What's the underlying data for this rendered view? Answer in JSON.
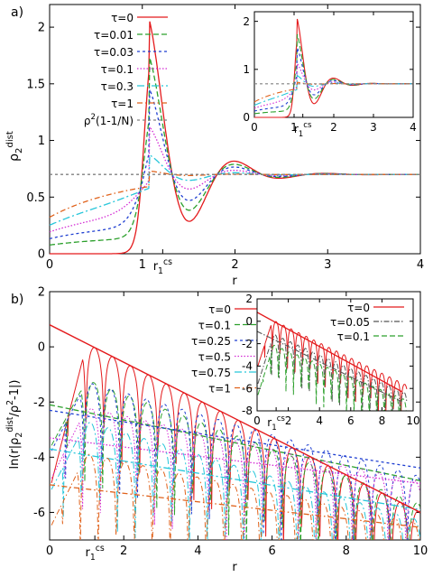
{
  "colors": {
    "tau0": "#e41a1c",
    "tau01": "#2ca02c",
    "tau003": "#1f3fd1",
    "tau_1": "#d42ad4",
    "tau_3": "#26c6da",
    "tau1": "#e0621b",
    "ideal": "#808080",
    "tau005": "#555555",
    "tau025": "#1f3fd1",
    "tau05": "#d42ad4",
    "tau075": "#26c6da"
  },
  "chart_data": [
    {
      "panel_label": "a)",
      "type": "line",
      "xlabel": "r",
      "ylabel": "ρ₂dist",
      "ylabel_main": "ρ",
      "ylabel_sub": "2",
      "ylabel_sup": "dist",
      "xlim": [
        0,
        4
      ],
      "ylim": [
        0,
        2.2
      ],
      "xticks": [
        "0",
        "1",
        "2",
        "3",
        "4"
      ],
      "xtick_values": [
        0,
        1,
        2,
        3,
        4
      ],
      "extra_tick": {
        "value": 1.22,
        "main": "r",
        "sub": "1",
        "sup": "cs"
      },
      "yticks": [
        "0",
        "0.5",
        "1",
        "1.5",
        "2"
      ],
      "ytick_values": [
        0,
        0.5,
        1,
        1.5,
        2
      ],
      "series": [
        {
          "name": "τ=0",
          "peak": 2.05,
          "mix": 1.0,
          "steep": 25,
          "dash": "",
          "color_key": "tau0"
        },
        {
          "name": "τ=0.01",
          "peak": 1.73,
          "mix": 0.78,
          "steep": 18,
          "dash": "6,3",
          "color_key": "tau01"
        },
        {
          "name": "τ=0.03",
          "peak": 1.45,
          "mix": 0.62,
          "steep": 12,
          "dash": "3,3",
          "color_key": "tau003"
        },
        {
          "name": "τ=0.1",
          "peak": 1.12,
          "mix": 0.45,
          "steep": 7,
          "dash": "1.5,2",
          "color_key": "tau_1"
        },
        {
          "name": "τ=0.3",
          "peak": 0.87,
          "mix": 0.3,
          "steep": 3.5,
          "dash": "8,3,2,3",
          "color_key": "tau_3"
        },
        {
          "name": "τ=1",
          "peak": 0.73,
          "mix": 0.12,
          "steep": 1.6,
          "dash": "6,3,1.5,3",
          "color_key": "tau1"
        },
        {
          "name": "ρ²(1-1/N)",
          "constant": 0.7,
          "dash": "3,3",
          "color_key": "ideal"
        }
      ],
      "legend_rho": {
        "a": "ρ",
        "b": "2",
        "c": "(1-1/N)"
      },
      "inset": {
        "xlim": [
          0,
          4
        ],
        "ylim": [
          0,
          2.2
        ],
        "xticks": [
          "0",
          "1",
          "2",
          "3",
          "4"
        ],
        "xtick_values": [
          0,
          1,
          2,
          3,
          4
        ],
        "yticks": [
          "0",
          "1",
          "2"
        ],
        "ytick_values": [
          0,
          1,
          2
        ],
        "extra_tick": {
          "value": 1.22,
          "main": "r",
          "sub": "1",
          "sup": "cs"
        }
      }
    },
    {
      "panel_label": "b)",
      "type": "line",
      "xlabel": "r",
      "ylabel": "ln(r|ρ₂dist/ρ²-1|)",
      "ylabel_parts": {
        "a": "ln(r|ρ",
        "b": "2",
        "c": "dist",
        "d": "/ρ",
        "e": "2",
        "f": "-1|)"
      },
      "xlim": [
        0,
        10
      ],
      "ylim": [
        -7,
        2
      ],
      "xticks": [
        "0",
        "2",
        "4",
        "6",
        "8",
        "10"
      ],
      "xtick_values": [
        0,
        2,
        4,
        6,
        8,
        10
      ],
      "extra_tick": {
        "value": 1.22,
        "main": "r",
        "sub": "1",
        "sup": "cs"
      },
      "yticks": [
        "2",
        "0",
        "-2",
        "-4",
        "-6"
      ],
      "ytick_values": [
        2,
        0,
        -2,
        -4,
        -6
      ],
      "envelope": {
        "x": [
          0,
          10
        ],
        "y": [
          0.8,
          -6.0
        ],
        "color_key": "tau0"
      },
      "series": [
        {
          "name": "τ=0",
          "y0": 0.8,
          "slope": -0.68,
          "dash": "",
          "color_key": "tau0"
        },
        {
          "name": "τ=0.1",
          "y0": -0.7,
          "slope": -0.5,
          "dash": "6,3",
          "color_key": "tau01"
        },
        {
          "name": "τ=0.25",
          "y0": -0.9,
          "slope": -0.38,
          "dash": "3,3",
          "color_key": "tau025"
        },
        {
          "name": "τ=0.5",
          "y0": -1.9,
          "slope": -0.3,
          "dash": "1.5,2",
          "color_key": "tau05"
        },
        {
          "name": "τ=0.75",
          "y0": -2.3,
          "slope": -0.4,
          "dash": "8,3,2,3",
          "color_key": "tau075"
        },
        {
          "name": "τ=1",
          "y0": -3.6,
          "slope": -0.28,
          "dash": "6,3,1.5,3",
          "color_key": "tau1"
        }
      ],
      "inset": {
        "xlim": [
          0,
          10
        ],
        "ylim": [
          -8,
          2
        ],
        "xticks": [
          "0",
          "2",
          "4",
          "6",
          "8",
          "10"
        ],
        "xtick_values": [
          0,
          2,
          4,
          6,
          8,
          10
        ],
        "yticks": [
          "2",
          "0",
          "-2",
          "-4",
          "-6",
          "-8"
        ],
        "ytick_values": [
          2,
          0,
          -2,
          -4,
          -6,
          -8
        ],
        "extra_tick": {
          "value": 1.22,
          "main": "r",
          "sub": "1",
          "sup": "cs"
        },
        "series": [
          {
            "name": "τ=0",
            "color_key": "tau0",
            "dash": ""
          },
          {
            "name": "τ=0.05",
            "color_key": "tau005",
            "dash": "6,2,1.5,2"
          },
          {
            "name": "τ=0.1",
            "color_key": "tau01",
            "dash": "6,3"
          }
        ]
      }
    }
  ]
}
